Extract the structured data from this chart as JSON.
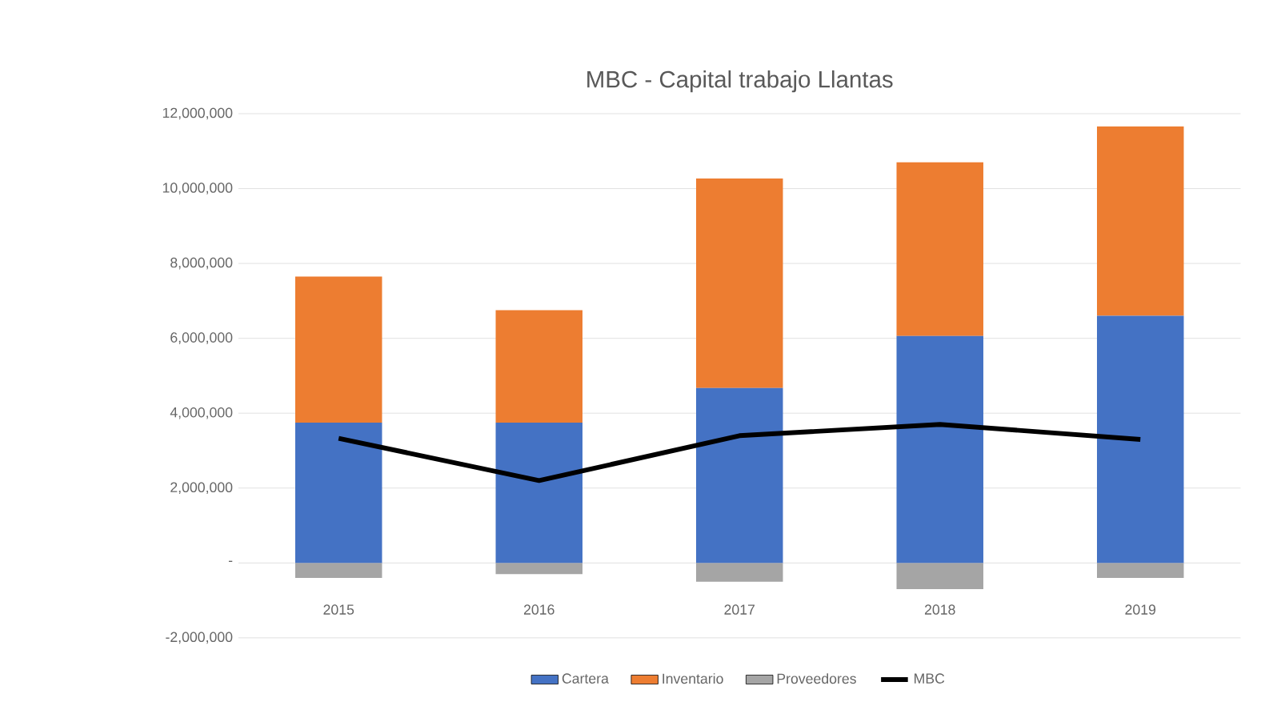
{
  "chart_data": {
    "type": "bar",
    "stacked": true,
    "title": "MBC - Capital trabajo Llantas",
    "categories": [
      "2015",
      "2016",
      "2017",
      "2018",
      "2019"
    ],
    "series": [
      {
        "name": "Cartera",
        "color": "#4472c4",
        "values": [
          3750000,
          3750000,
          4670000,
          6060000,
          6600000
        ]
      },
      {
        "name": "Inventario",
        "color": "#ed7d31",
        "values": [
          3900000,
          3000000,
          5600000,
          4640000,
          5060000
        ]
      },
      {
        "name": "Proveedores",
        "color": "#a5a5a5",
        "values": [
          -400000,
          -300000,
          -500000,
          -700000,
          -400000
        ]
      },
      {
        "name": "MBC",
        "type": "line",
        "color": "#000000",
        "values": [
          3330000,
          2200000,
          3400000,
          3700000,
          3300000
        ]
      }
    ],
    "ylim": [
      -2000000,
      12000000
    ],
    "yticks": [
      {
        "value": -2000000,
        "label": "-2,000,000"
      },
      {
        "value": 0,
        "label": "-"
      },
      {
        "value": 2000000,
        "label": "2,000,000"
      },
      {
        "value": 4000000,
        "label": "4,000,000"
      },
      {
        "value": 6000000,
        "label": "6,000,000"
      },
      {
        "value": 8000000,
        "label": "8,000,000"
      },
      {
        "value": 10000000,
        "label": "10,000,000"
      },
      {
        "value": 12000000,
        "label": "12,000,000"
      }
    ],
    "grid": "y",
    "legend": "bottom"
  }
}
